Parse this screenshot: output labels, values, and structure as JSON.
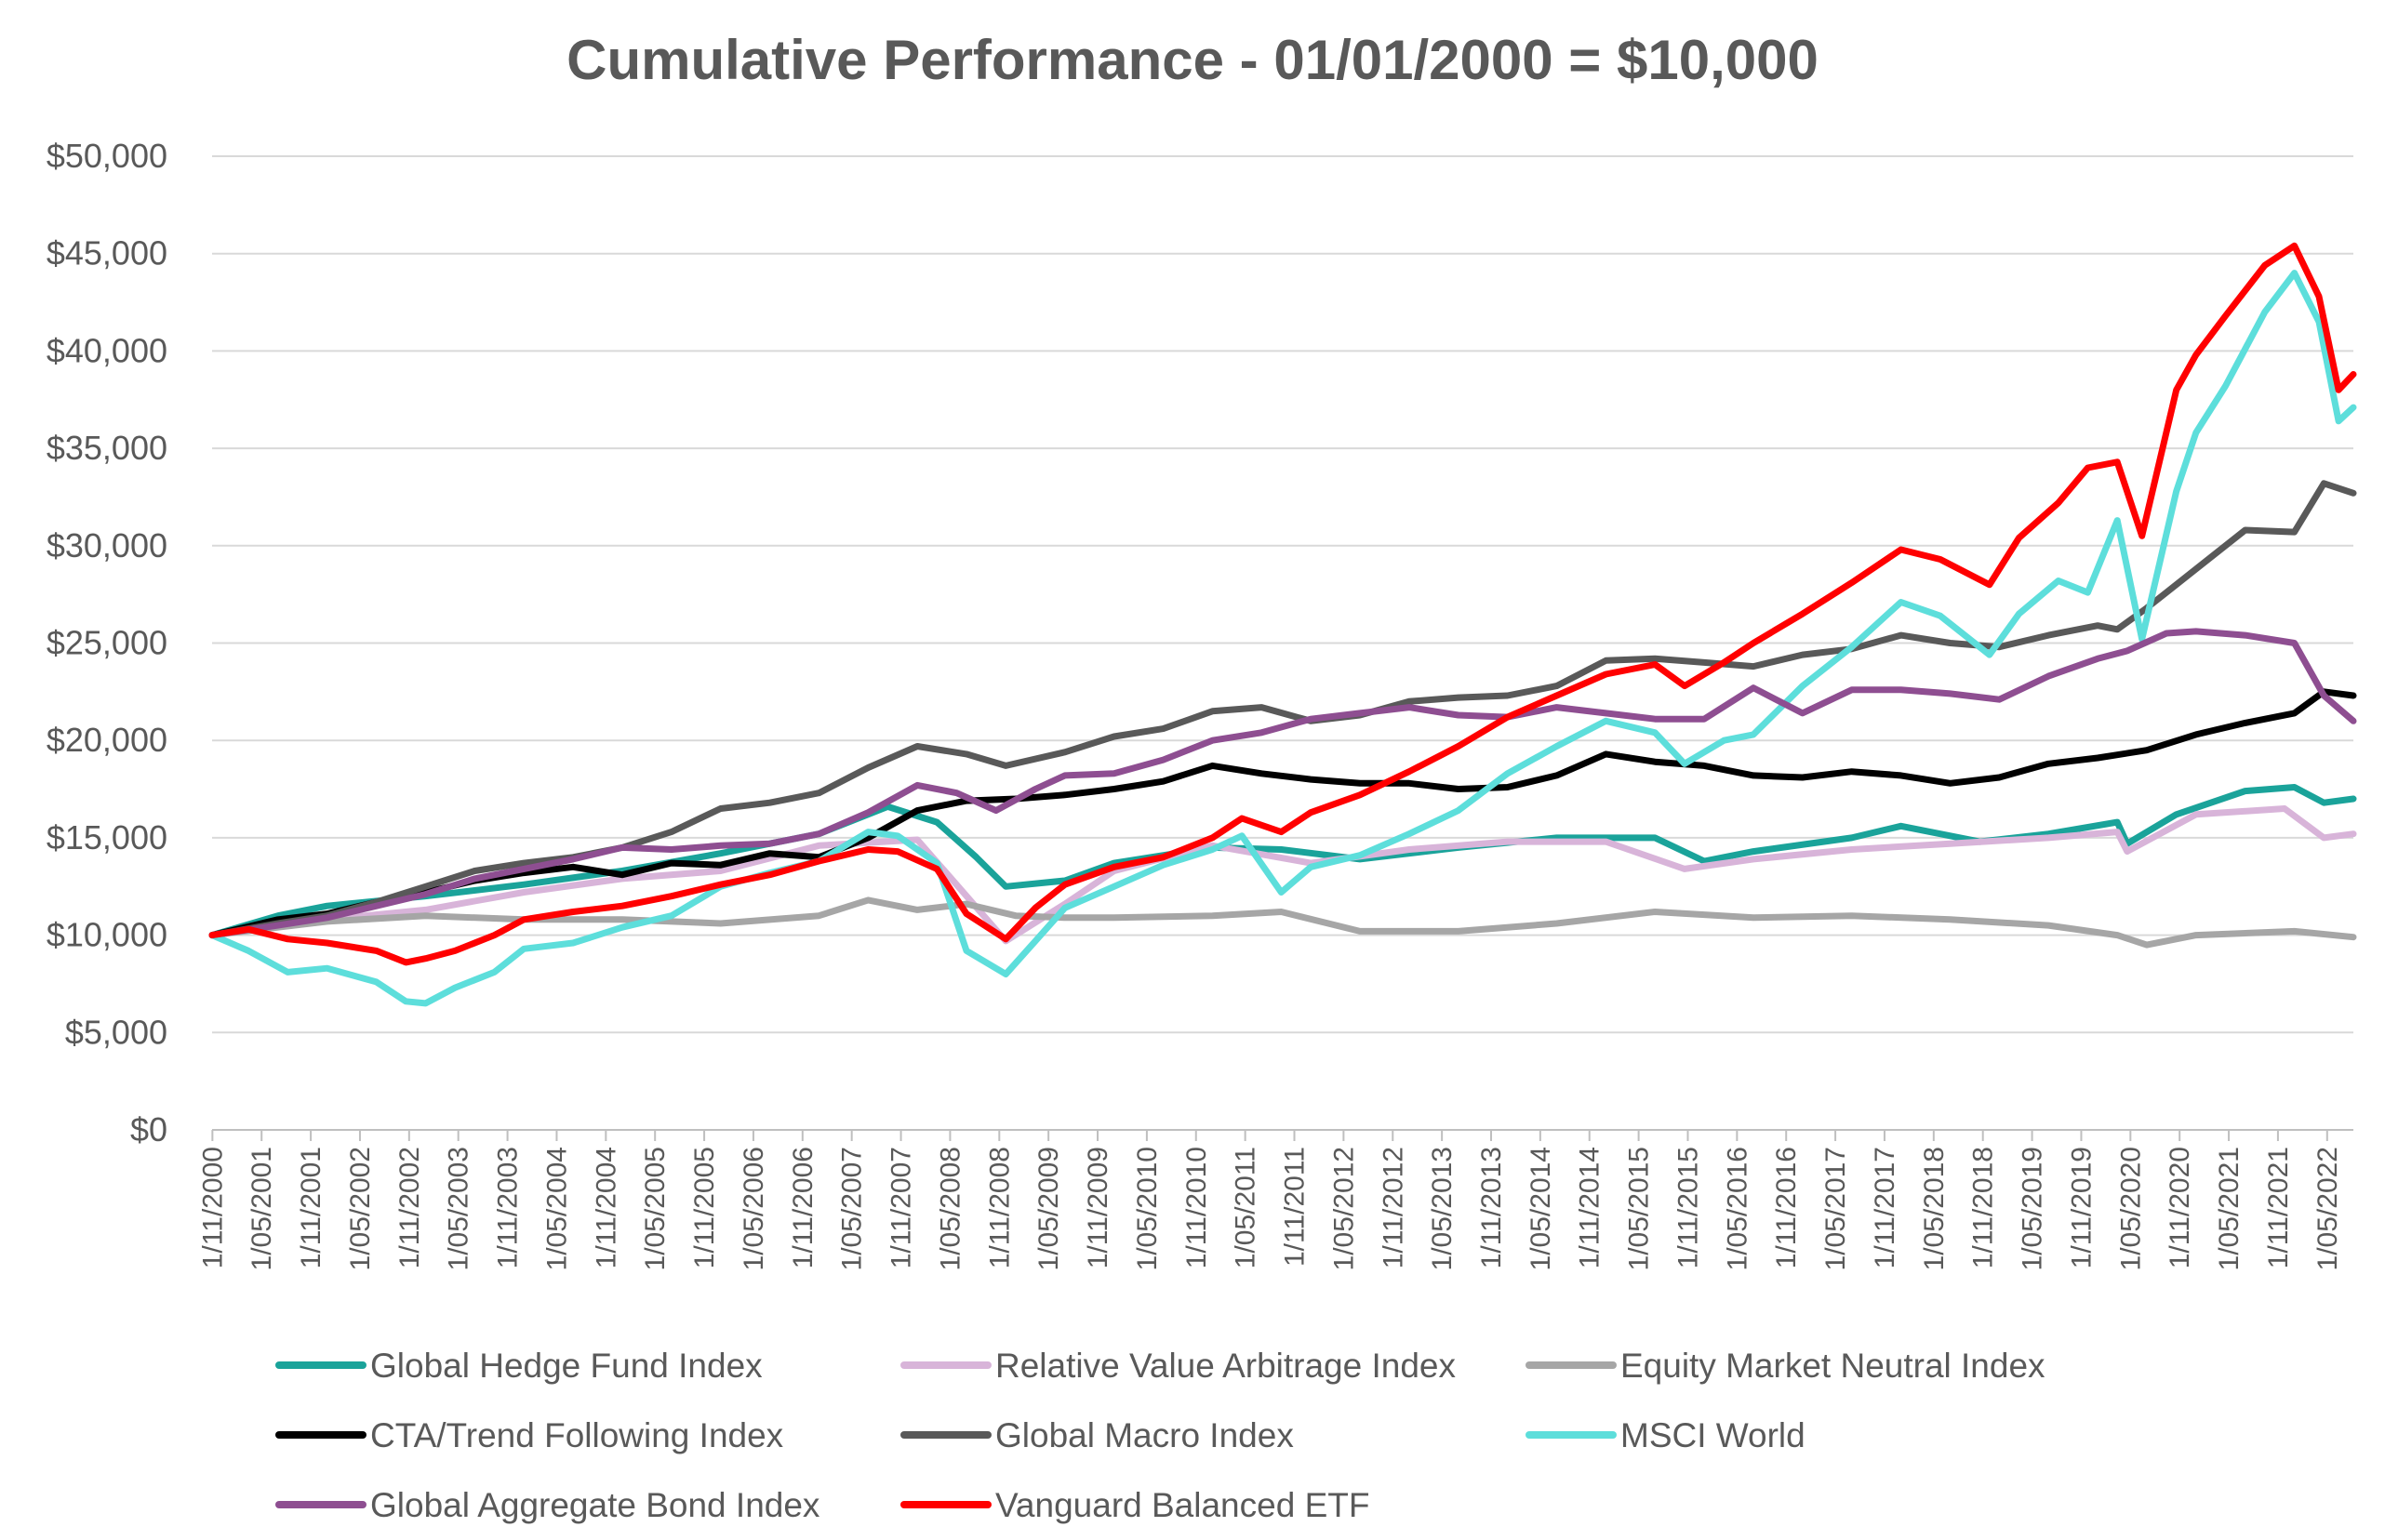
{
  "chart_data": {
    "type": "line",
    "title": "Cumulative Performance - 01/01/2000 = $10,000",
    "xlabel": "",
    "ylabel": "",
    "ylim": [
      0,
      50000
    ],
    "yticks": [
      "$0",
      "$5,000",
      "$10,000",
      "$15,000",
      "$20,000",
      "$25,000",
      "$30,000",
      "$35,000",
      "$40,000",
      "$45,000",
      "$50,000"
    ],
    "ytick_values": [
      0,
      5000,
      10000,
      15000,
      20000,
      25000,
      30000,
      35000,
      40000,
      45000,
      50000
    ],
    "xlim": [
      2000.83,
      2022.6
    ],
    "xticks": [
      "1/11/2000",
      "1/05/2001",
      "1/11/2001",
      "1/05/2002",
      "1/11/2002",
      "1/05/2003",
      "1/11/2003",
      "1/05/2004",
      "1/11/2004",
      "1/05/2005",
      "1/11/2005",
      "1/05/2006",
      "1/11/2006",
      "1/05/2007",
      "1/11/2007",
      "1/05/2008",
      "1/11/2008",
      "1/05/2009",
      "1/11/2009",
      "1/05/2010",
      "1/11/2010",
      "1/05/2011",
      "1/11/2011",
      "1/05/2012",
      "1/11/2012",
      "1/05/2013",
      "1/11/2013",
      "1/05/2014",
      "1/11/2014",
      "1/05/2015",
      "1/11/2015",
      "1/05/2016",
      "1/11/2016",
      "1/05/2017",
      "1/11/2017",
      "1/05/2018",
      "1/11/2018",
      "1/05/2019",
      "1/11/2019",
      "1/05/2020",
      "1/11/2020",
      "1/05/2021",
      "1/11/2021",
      "1/05/2022"
    ],
    "legend_position": "bottom",
    "grid": true,
    "series": [
      {
        "name": "Global Hedge Fund Index",
        "color": "#1aa39a",
        "x": [
          2000.83,
          2001.5,
          2002.0,
          2003.0,
          2004.0,
          2005.0,
          2006.0,
          2007.0,
          2007.7,
          2008.2,
          2008.6,
          2008.9,
          2009.5,
          2010.0,
          2011.0,
          2011.7,
          2012.5,
          2013.5,
          2014.5,
          2015.5,
          2016.0,
          2016.5,
          2017.5,
          2018.0,
          2018.8,
          2019.5,
          2020.2,
          2020.3,
          2020.8,
          2021.5,
          2022.0,
          2022.3,
          2022.6
        ],
        "values": [
          10000,
          11000,
          11500,
          12000,
          12600,
          13300,
          14200,
          15200,
          16600,
          15800,
          14000,
          12500,
          12800,
          13700,
          14500,
          14400,
          13900,
          14500,
          15000,
          15000,
          13800,
          14300,
          15000,
          15600,
          14800,
          15200,
          15800,
          14700,
          16200,
          17400,
          17600,
          16800,
          17000
        ]
      },
      {
        "name": "Relative Value Arbitrage Index",
        "color": "#d8b4d9",
        "x": [
          2000.83,
          2002.0,
          2003.0,
          2004.0,
          2005.0,
          2006.0,
          2007.0,
          2008.0,
          2008.9,
          2009.5,
          2010.0,
          2011.0,
          2012.0,
          2013.0,
          2014.0,
          2015.0,
          2015.8,
          2016.5,
          2017.5,
          2018.5,
          2019.5,
          2020.2,
          2020.3,
          2021.0,
          2021.9,
          2022.3,
          2022.6
        ],
        "values": [
          10000,
          10800,
          11300,
          12200,
          12900,
          13300,
          14600,
          14900,
          9700,
          11600,
          13300,
          14600,
          13700,
          14400,
          14800,
          14800,
          13400,
          13900,
          14400,
          14700,
          15000,
          15300,
          14300,
          16200,
          16500,
          15000,
          15200
        ]
      },
      {
        "name": "Equity Market Neutral Index",
        "color": "#a6a6a6",
        "x": [
          2000.83,
          2002.0,
          2003.0,
          2004.0,
          2005.0,
          2006.0,
          2007.0,
          2007.5,
          2008.0,
          2008.5,
          2009.0,
          2009.5,
          2010.0,
          2011.0,
          2011.7,
          2012.5,
          2013.5,
          2014.5,
          2015.5,
          2016.5,
          2017.5,
          2018.5,
          2019.5,
          2020.2,
          2020.5,
          2021.0,
          2022.0,
          2022.6
        ],
        "values": [
          10000,
          10700,
          11000,
          10800,
          10800,
          10600,
          11000,
          11800,
          11300,
          11600,
          11000,
          10900,
          10900,
          11000,
          11200,
          10200,
          10200,
          10600,
          11200,
          10900,
          11000,
          10800,
          10500,
          10000,
          9500,
          10000,
          10200,
          9900
        ]
      },
      {
        "name": "CTA/Trend Following Index",
        "color": "#000000",
        "x": [
          2000.83,
          2001.5,
          2002.0,
          2002.5,
          2003.0,
          2003.5,
          2004.0,
          2004.5,
          2005.0,
          2005.5,
          2006.0,
          2006.5,
          2007.0,
          2007.5,
          2008.0,
          2008.5,
          2009.0,
          2009.5,
          2010.0,
          2010.5,
          2011.0,
          2011.5,
          2012.0,
          2012.5,
          2013.0,
          2013.5,
          2014.0,
          2014.5,
          2015.0,
          2015.5,
          2016.0,
          2016.5,
          2017.0,
          2017.5,
          2018.0,
          2018.5,
          2019.0,
          2019.5,
          2020.0,
          2020.5,
          2021.0,
          2021.5,
          2022.0,
          2022.3,
          2022.6
        ],
        "values": [
          10000,
          10800,
          11100,
          11700,
          12200,
          12800,
          13200,
          13500,
          13100,
          13700,
          13600,
          14200,
          14000,
          15000,
          16400,
          16900,
          17000,
          17200,
          17500,
          17900,
          18700,
          18300,
          18000,
          17800,
          17800,
          17500,
          17600,
          18200,
          19300,
          18900,
          18700,
          18200,
          18100,
          18400,
          18200,
          17800,
          18100,
          18800,
          19100,
          19500,
          20300,
          20900,
          21400,
          22500,
          22300
        ]
      },
      {
        "name": "Global Macro Index",
        "color": "#595959",
        "x": [
          2000.83,
          2001.5,
          2002.0,
          2002.5,
          2003.0,
          2003.5,
          2004.0,
          2004.5,
          2005.0,
          2005.5,
          2006.0,
          2006.5,
          2007.0,
          2007.5,
          2008.0,
          2008.5,
          2008.9,
          2009.5,
          2010.0,
          2010.5,
          2011.0,
          2011.5,
          2012.0,
          2012.5,
          2013.0,
          2013.5,
          2014.0,
          2014.5,
          2015.0,
          2015.5,
          2016.0,
          2016.5,
          2017.0,
          2017.5,
          2018.0,
          2018.5,
          2019.0,
          2019.5,
          2020.0,
          2020.2,
          2020.5,
          2021.0,
          2021.5,
          2022.0,
          2022.3,
          2022.6
        ],
        "values": [
          10000,
          10600,
          11000,
          11700,
          12500,
          13300,
          13700,
          14000,
          14500,
          15300,
          16500,
          16800,
          17300,
          18600,
          19700,
          19300,
          18700,
          19400,
          20200,
          20600,
          21500,
          21700,
          21000,
          21300,
          22000,
          22200,
          22300,
          22800,
          24100,
          24200,
          24000,
          23800,
          24400,
          24700,
          25400,
          25000,
          24800,
          25400,
          25900,
          25700,
          26800,
          28800,
          30800,
          30700,
          33200,
          32700
        ]
      },
      {
        "name": "MSCI World",
        "color": "#5ddedb",
        "x": [
          2000.83,
          2001.2,
          2001.6,
          2002.0,
          2002.5,
          2002.8,
          2003.0,
          2003.3,
          2003.7,
          2004.0,
          2004.5,
          2005.0,
          2005.5,
          2006.0,
          2006.5,
          2007.0,
          2007.5,
          2007.8,
          2008.2,
          2008.5,
          2008.9,
          2009.2,
          2009.5,
          2010.0,
          2010.5,
          2011.0,
          2011.3,
          2011.7,
          2012.0,
          2012.5,
          2013.0,
          2013.5,
          2014.0,
          2014.5,
          2015.0,
          2015.5,
          2015.8,
          2016.2,
          2016.5,
          2017.0,
          2017.5,
          2018.0,
          2018.4,
          2018.9,
          2019.2,
          2019.6,
          2019.9,
          2020.2,
          2020.45,
          2020.8,
          2021.0,
          2021.3,
          2021.7,
          2022.0,
          2022.25,
          2022.45,
          2022.6
        ],
        "values": [
          10000,
          9200,
          8100,
          8300,
          7600,
          6600,
          6500,
          7300,
          8100,
          9300,
          9600,
          10400,
          11000,
          12500,
          13200,
          13800,
          15300,
          15100,
          13700,
          9200,
          8000,
          9700,
          11400,
          12500,
          13600,
          14400,
          15100,
          12200,
          13500,
          14100,
          15200,
          16400,
          18300,
          19700,
          21000,
          20400,
          18800,
          20000,
          20300,
          22800,
          24800,
          27100,
          26400,
          24400,
          26500,
          28200,
          27600,
          31300,
          25200,
          32800,
          35800,
          38200,
          42000,
          44000,
          41500,
          36400,
          37100
        ]
      },
      {
        "name": "Global Aggregate Bond Index",
        "color": "#8e4e91",
        "x": [
          2000.83,
          2001.5,
          2002.0,
          2002.5,
          2003.0,
          2003.5,
          2004.0,
          2004.5,
          2005.0,
          2005.5,
          2006.0,
          2006.5,
          2007.0,
          2007.5,
          2008.0,
          2008.4,
          2008.8,
          2009.2,
          2009.5,
          2010.0,
          2010.5,
          2011.0,
          2011.5,
          2012.0,
          2012.5,
          2013.0,
          2013.5,
          2014.0,
          2014.5,
          2015.0,
          2015.5,
          2016.0,
          2016.5,
          2017.0,
          2017.5,
          2018.0,
          2018.5,
          2019.0,
          2019.5,
          2020.0,
          2020.3,
          2020.7,
          2021.0,
          2021.5,
          2022.0,
          2022.3,
          2022.6
        ],
        "values": [
          10000,
          10500,
          10900,
          11500,
          12100,
          12900,
          13400,
          13900,
          14500,
          14400,
          14600,
          14700,
          15200,
          16300,
          17700,
          17300,
          16400,
          17500,
          18200,
          18300,
          19000,
          20000,
          20400,
          21100,
          21400,
          21700,
          21300,
          21200,
          21700,
          21400,
          21100,
          21100,
          22700,
          21400,
          22600,
          22600,
          22400,
          22100,
          23300,
          24200,
          24600,
          25500,
          25600,
          25400,
          25000,
          22300,
          21000
        ]
      },
      {
        "name": "Vanguard Balanced ETF",
        "color": "#ff0000",
        "x": [
          2000.83,
          2001.2,
          2001.6,
          2002.0,
          2002.5,
          2002.8,
          2003.0,
          2003.3,
          2003.7,
          2004.0,
          2004.5,
          2005.0,
          2005.5,
          2006.0,
          2006.5,
          2007.0,
          2007.5,
          2007.8,
          2008.2,
          2008.5,
          2008.9,
          2009.2,
          2009.5,
          2010.0,
          2010.5,
          2011.0,
          2011.3,
          2011.7,
          2012.0,
          2012.5,
          2013.0,
          2013.5,
          2014.0,
          2014.5,
          2015.0,
          2015.5,
          2015.8,
          2016.2,
          2016.5,
          2017.0,
          2017.5,
          2018.0,
          2018.4,
          2018.9,
          2019.2,
          2019.6,
          2019.9,
          2020.2,
          2020.45,
          2020.8,
          2021.0,
          2021.3,
          2021.7,
          2022.0,
          2022.25,
          2022.45,
          2022.6
        ],
        "values": [
          10000,
          10300,
          9800,
          9600,
          9200,
          8600,
          8800,
          9200,
          10000,
          10800,
          11200,
          11500,
          12000,
          12600,
          13100,
          13800,
          14400,
          14300,
          13400,
          11100,
          9800,
          11400,
          12600,
          13500,
          14000,
          15000,
          16000,
          15300,
          16300,
          17200,
          18400,
          19700,
          21200,
          22300,
          23400,
          23900,
          22800,
          24000,
          25000,
          26500,
          28100,
          29800,
          29300,
          28000,
          30400,
          32200,
          34000,
          34300,
          30500,
          38000,
          39800,
          41800,
          44400,
          45400,
          42800,
          38000,
          38800
        ]
      }
    ]
  },
  "legend": {
    "items": [
      "Global Hedge Fund Index",
      "Relative Value Arbitrage Index",
      "Equity Market Neutral Index",
      "CTA/Trend Following Index",
      "Global Macro Index",
      "MSCI World",
      "Global Aggregate Bond Index",
      "Vanguard Balanced ETF"
    ]
  }
}
